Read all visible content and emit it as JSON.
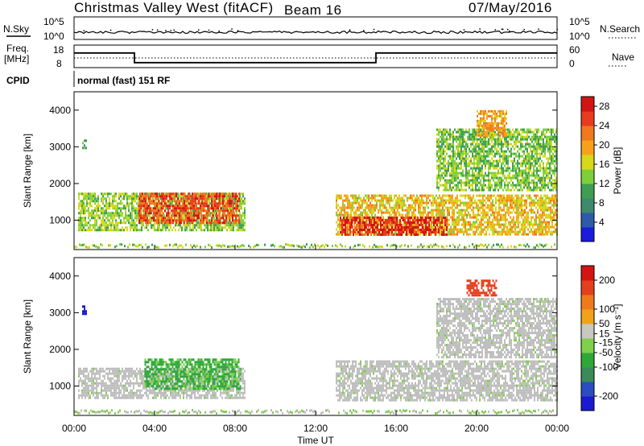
{
  "header": {
    "radar": "Christmas Valley West (fitACF)",
    "beam": "Beam 16",
    "date": "07/May/2016"
  },
  "panel_labels": {
    "nsky": "N.Sky",
    "nsearch": "N.Search",
    "freq_line1": "Freq.",
    "freq_line2": "[MHz]",
    "nave": "Nave",
    "cpid": "CPID",
    "cpid_value": "normal (fast) 151 RF"
  },
  "noise_ticks": {
    "top": "10^5",
    "bottom": "10^0"
  },
  "freq_ticks": {
    "left_top": "18",
    "left_bottom": "8",
    "right_top": "60",
    "right_bottom": "0"
  },
  "colors": {
    "power_scale": [
      "#1b1bdc",
      "#2f5aa8",
      "#3d8a6e",
      "#3f9e53",
      "#7fcf3a",
      "#d8d81a",
      "#f7a11b",
      "#f0781e",
      "#e83b1f",
      "#d11515"
    ],
    "velocity_scale": [
      "#1a1ad0",
      "#2a4ec0",
      "#3a8a5a",
      "#2fa83a",
      "#7fd04a",
      "#c8c8c0",
      "#f2a21a",
      "#ef7a1c",
      "#e4401e",
      "#d41414"
    ],
    "ground_scatter": "#bebebe"
  },
  "chart_data": [
    {
      "type": "heatmap",
      "name": "power",
      "ylabel": "Slant Range [km]",
      "yticks": [
        "1000",
        "2000",
        "3000",
        "4000"
      ],
      "ylim": [
        200,
        4500
      ],
      "xlim": [
        0,
        24
      ],
      "colorbar": {
        "label": "Power [dB]",
        "ticks": [
          "4",
          "8",
          "12",
          "16",
          "20",
          "24",
          "28"
        ],
        "range": [
          0,
          30
        ]
      },
      "regions": [
        {
          "t_start": 0.2,
          "t_end": 8.5,
          "r_start": 700,
          "r_end": 1750,
          "value": 14
        },
        {
          "t_start": 3.2,
          "t_end": 8.2,
          "r_start": 900,
          "r_end": 1750,
          "value": 25
        },
        {
          "t_start": 13.0,
          "t_end": 24.0,
          "r_start": 600,
          "r_end": 1700,
          "value": 18
        },
        {
          "t_start": 13.2,
          "t_end": 18.5,
          "r_start": 600,
          "r_end": 1100,
          "value": 27
        },
        {
          "t_start": 18.0,
          "t_end": 24.0,
          "r_start": 1800,
          "r_end": 3500,
          "value": 13
        },
        {
          "t_start": 20.0,
          "t_end": 21.5,
          "r_start": 3300,
          "r_end": 4000,
          "value": 20
        },
        {
          "t_start": 0.4,
          "t_end": 0.6,
          "r_start": 2950,
          "r_end": 3200,
          "value": 11
        }
      ]
    },
    {
      "type": "heatmap",
      "name": "velocity",
      "ylabel": "Slant Range [km]",
      "xlabel": "Time UT",
      "xticks": [
        "00:00",
        "04:00",
        "08:00",
        "12:00",
        "16:00",
        "20:00",
        "00:00"
      ],
      "yticks": [
        "1000",
        "2000",
        "3000",
        "4000"
      ],
      "ylim": [
        200,
        4500
      ],
      "xlim": [
        0,
        24
      ],
      "colorbar": {
        "label": "Velocity [m s⁻¹]",
        "ticks": [
          "200",
          "100",
          "50",
          "15",
          "-15",
          "-50",
          "-100",
          "-200"
        ],
        "range": [
          -250,
          250
        ]
      },
      "regions": [
        {
          "t_start": 0.2,
          "t_end": 8.5,
          "r_start": 700,
          "r_end": 1500,
          "value": 0
        },
        {
          "t_start": 3.5,
          "t_end": 8.3,
          "r_start": 950,
          "r_end": 1750,
          "value": -60
        },
        {
          "t_start": 13.0,
          "t_end": 24.0,
          "r_start": 600,
          "r_end": 1700,
          "value": 0
        },
        {
          "t_start": 18.0,
          "t_end": 24.0,
          "r_start": 1800,
          "r_end": 3400,
          "value": 0
        },
        {
          "t_start": 0.4,
          "t_end": 0.6,
          "r_start": 3000,
          "r_end": 3200,
          "value": -220
        },
        {
          "t_start": 19.5,
          "t_end": 21.0,
          "r_start": 3500,
          "r_end": 3900,
          "value": 180
        }
      ]
    },
    {
      "type": "line",
      "name": "transmit_frequency",
      "x": [
        0,
        3,
        3,
        15,
        15,
        24
      ],
      "y": [
        14.5,
        14.5,
        10.2,
        10.2,
        14.5,
        14.5
      ]
    }
  ]
}
